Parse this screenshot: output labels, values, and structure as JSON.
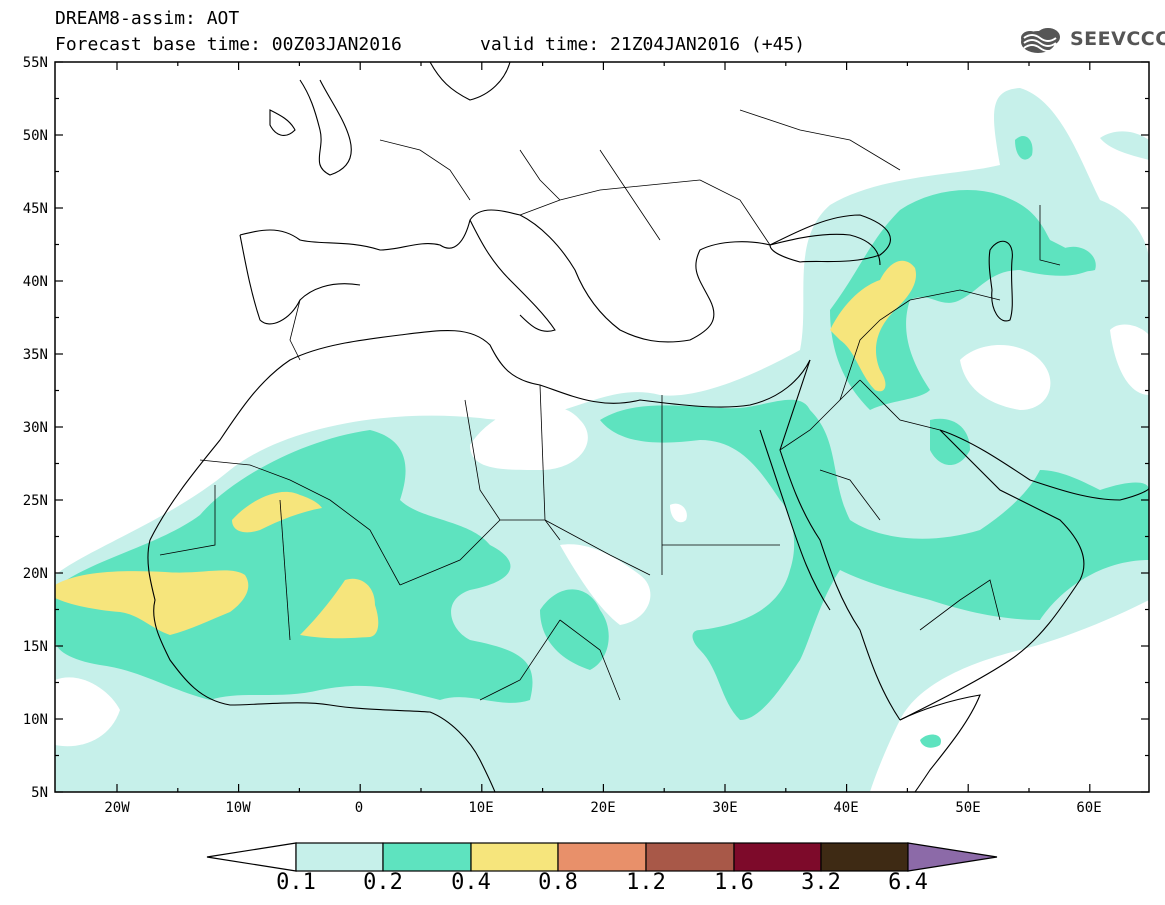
{
  "title": "DREAM8-assim: AOT",
  "base_time_label": "Forecast base time: 00Z03JAN2016",
  "valid_time_label": "valid time: 21Z04JAN2016 (+45)",
  "logo_text": "SEEVCCC",
  "lat_labels": [
    "55N",
    "50N",
    "45N",
    "40N",
    "35N",
    "30N",
    "25N",
    "20N",
    "15N",
    "10N",
    "5N"
  ],
  "lon_labels": [
    "20W",
    "10W",
    "0",
    "10E",
    "20E",
    "30E",
    "40E",
    "50E",
    "60E"
  ],
  "colorbar": {
    "labels": [
      "0.1",
      "0.2",
      "0.4",
      "0.8",
      "1.2",
      "1.6",
      "3.2",
      "6.4"
    ],
    "colors": [
      "#ffffff",
      "#c6f0ea",
      "#5ee3bf",
      "#f6e57c",
      "#e8906a",
      "#a85848",
      "#7d0a2a",
      "#3e2a14",
      "#8c6aa8"
    ]
  },
  "colors": {
    "level_01": "#c6f0ea",
    "level_02": "#5ee3bf",
    "level_04": "#f6e57c",
    "border": "#000000"
  }
}
